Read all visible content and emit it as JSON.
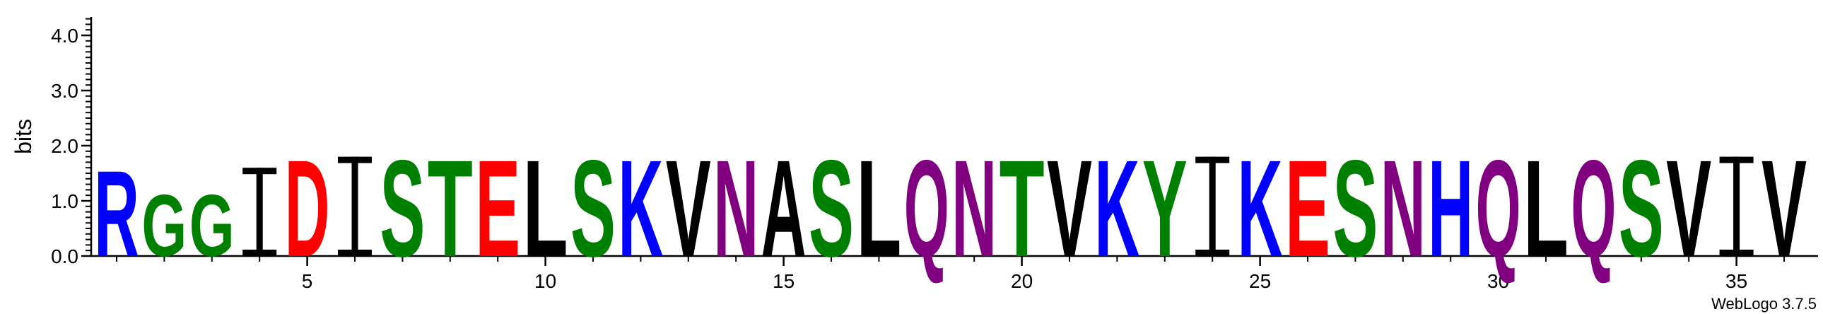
{
  "chart_data": {
    "type": "sequence_logo",
    "ylabel": "bits",
    "ylim": [
      0,
      4.3
    ],
    "yticks": [
      "0.0",
      "1.0",
      "2.0",
      "3.0",
      "4.0"
    ],
    "xticks": [
      "5",
      "10",
      "15",
      "20",
      "25",
      "30",
      "35"
    ],
    "positions": [
      {
        "pos": 1,
        "residue": "R",
        "bits": 1.6
      },
      {
        "pos": 2,
        "residue": "G",
        "bits": 1.15
      },
      {
        "pos": 3,
        "residue": "G",
        "bits": 1.15
      },
      {
        "pos": 4,
        "residue": "I",
        "bits": 1.6
      },
      {
        "pos": 5,
        "residue": "D",
        "bits": 1.8
      },
      {
        "pos": 6,
        "residue": "I",
        "bits": 1.8
      },
      {
        "pos": 7,
        "residue": "S",
        "bits": 1.8
      },
      {
        "pos": 8,
        "residue": "T",
        "bits": 1.8
      },
      {
        "pos": 9,
        "residue": "E",
        "bits": 1.8
      },
      {
        "pos": 10,
        "residue": "L",
        "bits": 1.8
      },
      {
        "pos": 11,
        "residue": "S",
        "bits": 1.8
      },
      {
        "pos": 12,
        "residue": "K",
        "bits": 1.8
      },
      {
        "pos": 13,
        "residue": "V",
        "bits": 1.8
      },
      {
        "pos": 14,
        "residue": "N",
        "bits": 1.8
      },
      {
        "pos": 15,
        "residue": "A",
        "bits": 1.8
      },
      {
        "pos": 16,
        "residue": "S",
        "bits": 1.8
      },
      {
        "pos": 17,
        "residue": "L",
        "bits": 1.8
      },
      {
        "pos": 18,
        "residue": "Q",
        "bits": 1.8
      },
      {
        "pos": 19,
        "residue": "N",
        "bits": 1.8
      },
      {
        "pos": 20,
        "residue": "T",
        "bits": 1.8
      },
      {
        "pos": 21,
        "residue": "V",
        "bits": 1.8
      },
      {
        "pos": 22,
        "residue": "K",
        "bits": 1.8
      },
      {
        "pos": 23,
        "residue": "Y",
        "bits": 1.8
      },
      {
        "pos": 24,
        "residue": "I",
        "bits": 1.8
      },
      {
        "pos": 25,
        "residue": "K",
        "bits": 1.8
      },
      {
        "pos": 26,
        "residue": "E",
        "bits": 1.8
      },
      {
        "pos": 27,
        "residue": "S",
        "bits": 1.8
      },
      {
        "pos": 28,
        "residue": "N",
        "bits": 1.8
      },
      {
        "pos": 29,
        "residue": "H",
        "bits": 1.8
      },
      {
        "pos": 30,
        "residue": "Q",
        "bits": 1.8
      },
      {
        "pos": 31,
        "residue": "L",
        "bits": 1.8
      },
      {
        "pos": 32,
        "residue": "Q",
        "bits": 1.8
      },
      {
        "pos": 33,
        "residue": "S",
        "bits": 1.8
      },
      {
        "pos": 34,
        "residue": "V",
        "bits": 1.8
      },
      {
        "pos": 35,
        "residue": "I",
        "bits": 1.8
      },
      {
        "pos": 36,
        "residue": "V",
        "bits": 1.8
      }
    ],
    "colors": {
      "R": "#0000ff",
      "K": "#0000ff",
      "H": "#0000ff",
      "G": "#008000",
      "S": "#008000",
      "T": "#008000",
      "Y": "#008000",
      "C": "#008000",
      "D": "#ff0000",
      "E": "#ff0000",
      "N": "#800080",
      "Q": "#800080",
      "I": "#000000",
      "L": "#000000",
      "V": "#000000",
      "A": "#000000",
      "F": "#000000",
      "W": "#000000",
      "M": "#000000",
      "P": "#000000"
    }
  },
  "watermark": "WebLogo 3.7.5"
}
